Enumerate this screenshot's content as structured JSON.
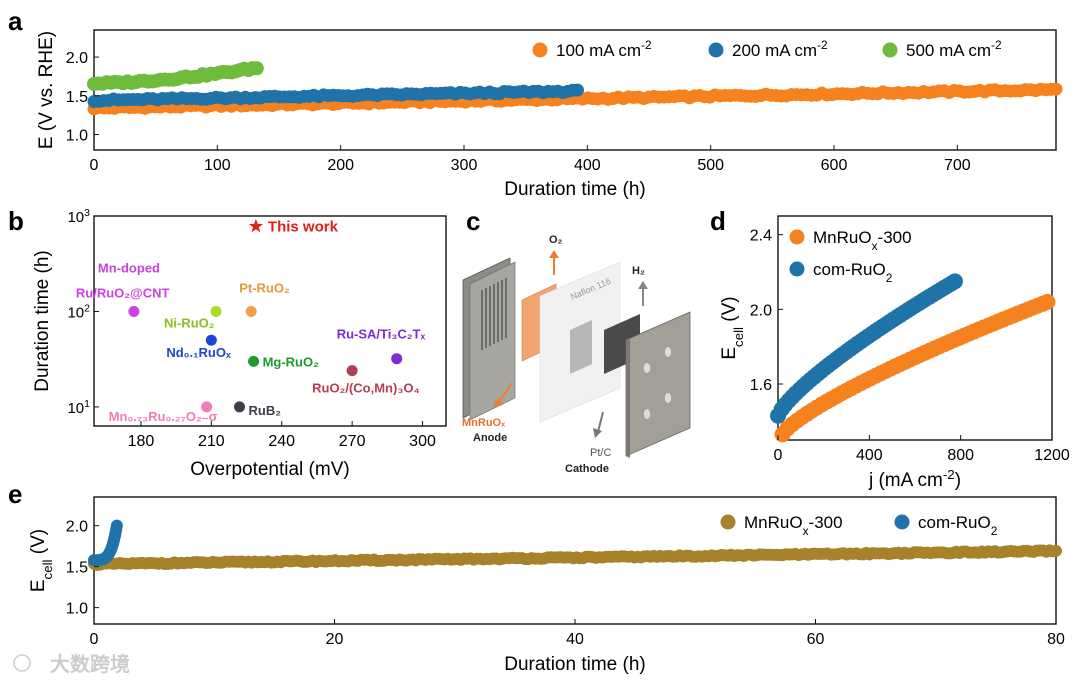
{
  "watermark": "大数跨境",
  "colors": {
    "orange": "#f5821f",
    "blue": "#1f73a8",
    "green": "#6fbb3b",
    "gold": "#a8822a",
    "red": "#e0201b"
  },
  "chart_data": [
    {
      "id": "a",
      "panel": "a",
      "type": "scatter",
      "xlabel": "Duration time (h)",
      "ylabel": "E (V vs. RHE)",
      "xlim": [
        0,
        780
      ],
      "ylim": [
        0.8,
        2.35
      ],
      "xticks": [
        0,
        100,
        200,
        300,
        400,
        500,
        600,
        700
      ],
      "yticks": [
        1.0,
        1.5,
        2.0
      ],
      "legend": "top-right",
      "legend_order": [
        0,
        1,
        2
      ],
      "series": [
        {
          "name": "100 mA cm",
          "sup": "-2",
          "color": "#f5821f",
          "x0": 0,
          "x1": 780,
          "y0": 1.34,
          "y1": 1.58,
          "n": 190
        },
        {
          "name": "200 mA cm",
          "sup": "-2",
          "color": "#1f73a8",
          "x0": 0,
          "x1": 392,
          "y0": 1.44,
          "y1": 1.56,
          "n": 100
        },
        {
          "name": "500 mA cm",
          "sup": "-2",
          "color": "#6fbb3b",
          "x0": 0,
          "x1": 132,
          "y0": 1.66,
          "y1": 1.86,
          "n": 40
        }
      ]
    },
    {
      "id": "b",
      "panel": "b",
      "type": "scatter",
      "xlabel": "Overpotential (mV)",
      "ylabel": "Duration time (h)",
      "xlim": [
        160,
        310
      ],
      "ylog": [
        1,
        3
      ],
      "xticks": [
        180,
        210,
        240,
        270,
        300
      ],
      "yticks": [
        {
          "label": "10",
          "sup": "1",
          "exp": 1
        },
        {
          "label": "10",
          "sup": "2",
          "exp": 2
        },
        {
          "label": "10",
          "sup": "3",
          "exp": 3
        }
      ],
      "points": [
        {
          "x": 177,
          "y": 100,
          "color": "#cc44e0",
          "label": "Mn-doped",
          "label2": "Ru/RuO₂@CNT",
          "lcolor": "#cc44e0",
          "lx": -36,
          "ly": -39,
          "lx2": -58,
          "ly2": -14,
          "anchor": "start"
        },
        {
          "x": 212,
          "y": 100,
          "color": "#aadd2a",
          "label": "Ni-RuO₂",
          "lcolor": "#8cbd1c",
          "lx": -52,
          "ly": 16,
          "anchor": "start"
        },
        {
          "x": 227,
          "y": 100,
          "color": "#f0a04c",
          "label": "Pt-RuO₂",
          "lcolor": "#e09a3a",
          "lx": -12,
          "ly": -19,
          "anchor": "start"
        },
        {
          "x": 210,
          "y": 50,
          "color": "#1d47d2",
          "label": "Nd₀.₁RuOₓ",
          "lcolor": "#1d47d2",
          "lx": -45,
          "ly": 17,
          "anchor": "start"
        },
        {
          "x": 228,
          "y": 30,
          "color": "#1f9a2c",
          "label": "Mg-RuO₂",
          "lcolor": "#1f9a2c",
          "lx": 9,
          "ly": 5,
          "anchor": "start"
        },
        {
          "x": 289,
          "y": 32,
          "color": "#7d2dd2",
          "label": "Ru-SA/Ti₃C₂Tₓ",
          "lcolor": "#7d2dd2",
          "lx": -60,
          "ly": -20,
          "anchor": "start"
        },
        {
          "x": 270,
          "y": 24,
          "color": "#b53e56",
          "label": "RuO₂/(Co,Mn)₃O₄",
          "lcolor": "#b53e56",
          "lx": -40,
          "ly": 22,
          "anchor": "start"
        },
        {
          "x": 222,
          "y": 10,
          "color": "#3c3e48",
          "label": "RuB₂",
          "lcolor": "#3c3e48",
          "lx": 9,
          "ly": 8,
          "anchor": "start"
        },
        {
          "x": 208,
          "y": 10,
          "color": "#f07cba",
          "label": "Mn₀.₇₃Ru₀.₂₇O₂₋σ",
          "lcolor": "#f07cba",
          "lx": -98,
          "ly": 14,
          "anchor": "start"
        }
      ],
      "star": {
        "x": 229,
        "y": 780,
        "label": "This work",
        "color": "#e0201b"
      }
    },
    {
      "id": "d",
      "panel": "d",
      "type": "scatter",
      "xlabel": "j (mA cm",
      "xlabel_sup": "-2",
      "xlabel_end": ")",
      "ylabel": "E",
      "ylabel_sub": "cell",
      "ylabel_end": " (V)",
      "xlim": [
        0,
        1200
      ],
      "ylim": [
        1.3,
        2.5
      ],
      "xticks": [
        0,
        400,
        800,
        1200
      ],
      "yticks": [
        1.6,
        2.0,
        2.4
      ],
      "legend": "top-left",
      "legend_order": [
        0,
        1
      ],
      "series": [
        {
          "name": "MnRuO",
          "sub": "x",
          "name_end": "-300",
          "color": "#f5821f",
          "x0": 20,
          "x1": 1180,
          "y0": 1.33,
          "y1": 2.04,
          "n": 55
        },
        {
          "name": "com-RuO",
          "sub": "2",
          "name_end": "",
          "color": "#1f73a8",
          "x0": 0,
          "x1": 775,
          "y0": 1.43,
          "y1": 2.15,
          "n": 50
        }
      ]
    },
    {
      "id": "e",
      "panel": "e",
      "type": "scatter",
      "xlabel": "Duration time (h)",
      "ylabel": "E",
      "ylabel_sub": "cell",
      "ylabel_end": " (V)",
      "xlim": [
        0,
        80
      ],
      "ylim": [
        0.8,
        2.35
      ],
      "xticks": [
        0,
        20,
        40,
        60,
        80
      ],
      "yticks": [
        1.0,
        1.5,
        2.0
      ],
      "legend": "top-right",
      "legend_order": [
        0,
        1
      ],
      "series": [
        {
          "name": "MnRuO",
          "sub": "x",
          "name_end": "-300",
          "color": "#a8822a",
          "x0": 0,
          "x1": 80,
          "y0": 1.53,
          "y1": 1.69,
          "n": 300
        },
        {
          "name": "com-RuO",
          "sub": "2",
          "name_end": "",
          "color": "#1f73a8",
          "x0": 0,
          "x1": 1.9,
          "y0": 1.58,
          "y1": 2.0,
          "n": 22
        }
      ]
    }
  ],
  "schematic": {
    "title": "c",
    "o2": "O₂",
    "h2": "H₂",
    "membrane": "Nafion 116",
    "anode_top": "MnRuOₓ",
    "anode_bottom": "Anode",
    "cathode_top": "Pt/C",
    "cathode_bottom": "Cathode"
  }
}
